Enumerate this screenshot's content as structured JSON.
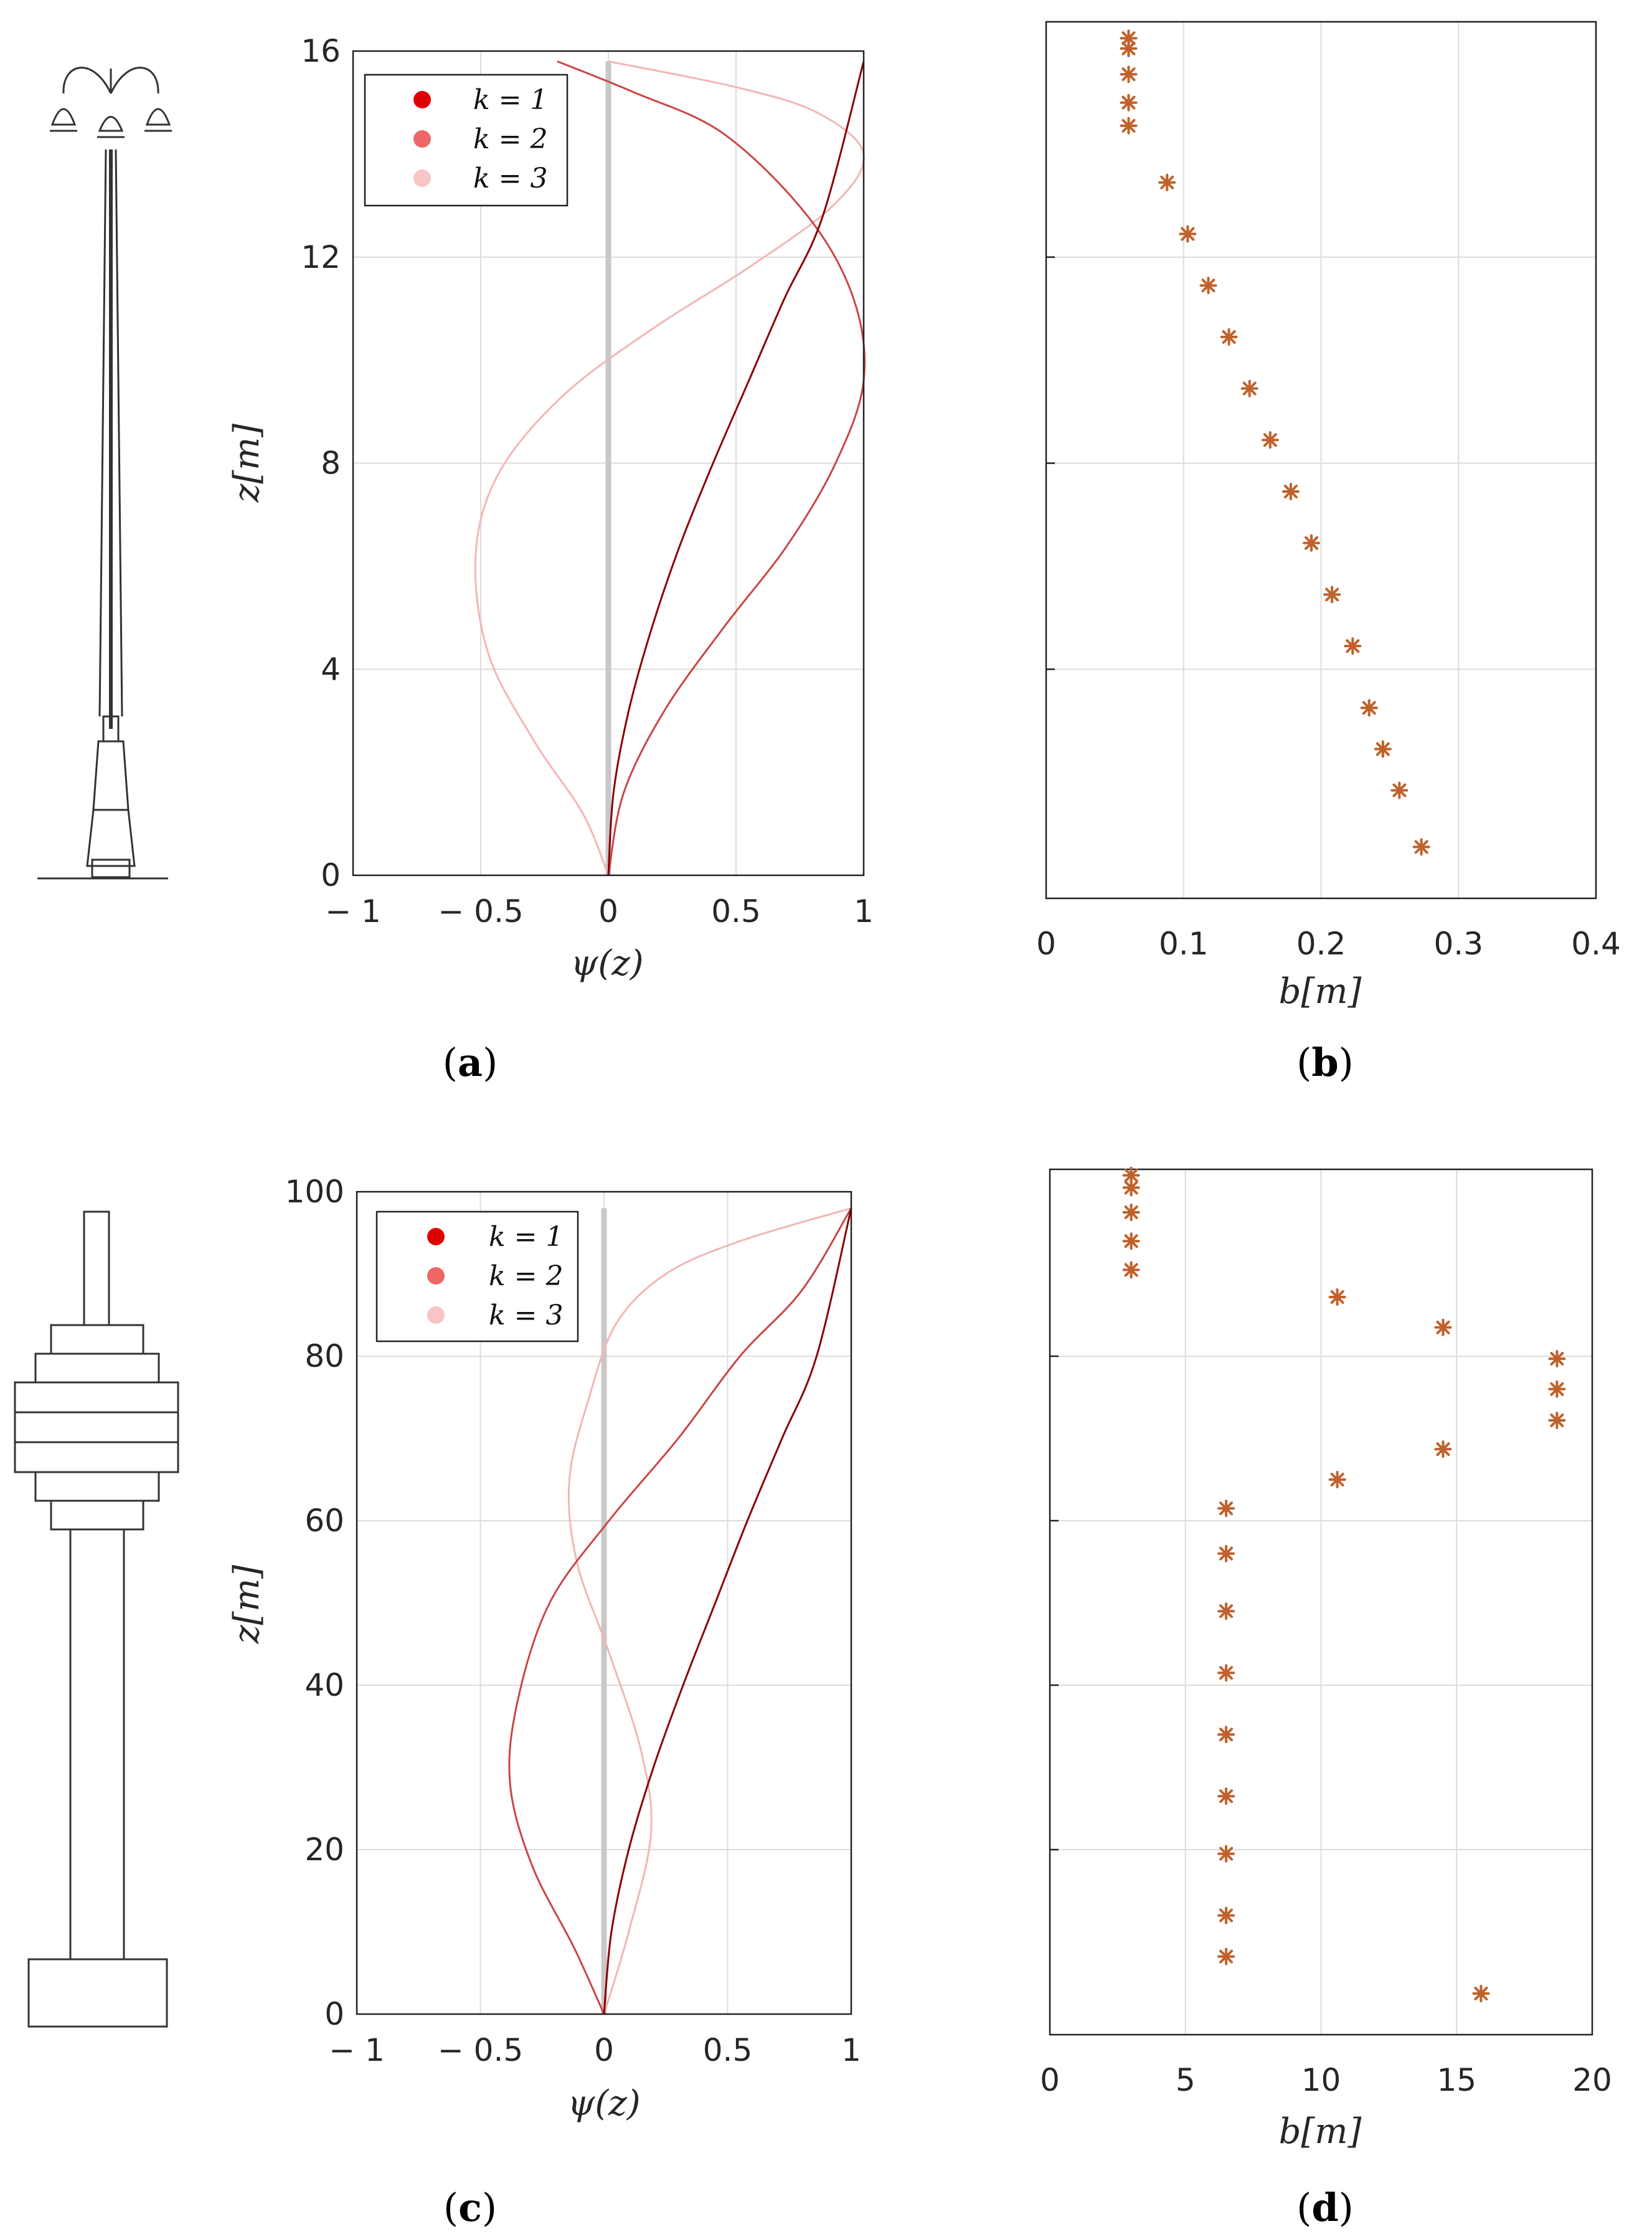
{
  "chart_data": [
    {
      "panel": "a",
      "type": "line",
      "xlabel": "ψ(z)",
      "ylabel": "z[m]",
      "xlim": [
        -1,
        1
      ],
      "ylim": [
        0,
        16
      ],
      "xticks": [
        "− 1",
        "− 0.5",
        "0",
        "0.5",
        "1"
      ],
      "yticks": [
        "0",
        "4",
        "8",
        "12",
        "16"
      ],
      "grid": true,
      "legend": "top-left",
      "series": [
        {
          "name": "k = 1",
          "color": "#8b0000",
          "x": [
            0,
            0.02,
            0.08,
            0.17,
            0.28,
            0.41,
            0.55,
            0.69,
            0.84,
            1.0
          ],
          "y": [
            0,
            1.6,
            3.2,
            4.8,
            6.4,
            8.0,
            9.6,
            11.2,
            12.8,
            15.8
          ]
        },
        {
          "name": "k = 2",
          "color": "#cc4444",
          "x": [
            0,
            0.06,
            0.22,
            0.45,
            0.7,
            0.89,
            1.0,
            0.96,
            0.78,
            0.45,
            0.1,
            -0.2
          ],
          "y": [
            0,
            1.6,
            3.2,
            4.8,
            6.4,
            8.0,
            9.6,
            11.2,
            12.8,
            14.4,
            15.2,
            15.8
          ]
        },
        {
          "name": "k = 3",
          "color": "#f2b6b6",
          "x": [
            0,
            -0.1,
            -0.29,
            -0.47,
            -0.52,
            -0.43,
            -0.18,
            0.17,
            0.55,
            0.88,
            1.0,
            0.82,
            0.5,
            0.0
          ],
          "y": [
            0,
            1.2,
            2.6,
            4.3,
            6.2,
            7.8,
            9.3,
            10.6,
            11.8,
            13.0,
            14.0,
            14.8,
            15.3,
            15.8
          ]
        }
      ],
      "reference_line": {
        "x": 0,
        "y": [
          0,
          15.8
        ],
        "color": "#c8c8c8"
      }
    },
    {
      "panel": "b",
      "type": "scatter",
      "xlabel": "b[m]",
      "xlim": [
        0,
        0.4
      ],
      "ylim": [
        0,
        16
      ],
      "xticks": [
        "0",
        "0.1",
        "0.2",
        "0.3",
        "0.4"
      ],
      "grid": true,
      "marker_color": "#c0612b",
      "x": [
        0.273,
        0.257,
        0.245,
        0.235,
        0.223,
        0.208,
        0.193,
        0.178,
        0.163,
        0.148,
        0.133,
        0.118,
        0.103,
        0.088,
        0.06,
        0.06,
        0.06,
        0.06,
        0.06
      ],
      "y": [
        0.55,
        1.65,
        2.45,
        3.25,
        4.45,
        5.45,
        6.45,
        7.45,
        8.45,
        9.45,
        10.45,
        11.45,
        12.45,
        13.45,
        14.55,
        15.0,
        15.55,
        16.05,
        16.25
      ]
    },
    {
      "panel": "c",
      "type": "line",
      "xlabel": "ψ(z)",
      "ylabel": "z[m]",
      "xlim": [
        -1,
        1
      ],
      "ylim": [
        0,
        100
      ],
      "xticks": [
        "− 1",
        "− 0.5",
        "0",
        "0.5",
        "1"
      ],
      "yticks": [
        "0",
        "20",
        "40",
        "60",
        "80",
        "100"
      ],
      "grid": true,
      "legend": "top-left",
      "series": [
        {
          "name": "k = 1",
          "color": "#8b0000",
          "x": [
            0,
            0.03,
            0.1,
            0.2,
            0.32,
            0.45,
            0.58,
            0.72,
            0.86,
            1.0
          ],
          "y": [
            0,
            10,
            20,
            30,
            40,
            50,
            60,
            70,
            80,
            98
          ]
        },
        {
          "name": "k = 2",
          "color": "#cc4444",
          "x": [
            0,
            -0.12,
            -0.29,
            -0.38,
            -0.35,
            -0.22,
            0.02,
            0.3,
            0.55,
            0.8,
            1.0
          ],
          "y": [
            0,
            8,
            18,
            28,
            38,
            50,
            60,
            70,
            80,
            88,
            98
          ]
        },
        {
          "name": "k = 3",
          "color": "#f2b6b6",
          "x": [
            0,
            0.1,
            0.19,
            0.15,
            0.02,
            -0.11,
            -0.14,
            -0.06,
            0.05,
            0.25,
            0.55,
            1.0
          ],
          "y": [
            0,
            10,
            22,
            32,
            44,
            55,
            65,
            75,
            84,
            90,
            94,
            98
          ]
        }
      ],
      "reference_line": {
        "x": 0,
        "y": [
          0,
          98
        ],
        "color": "#c8c8c8"
      }
    },
    {
      "panel": "d",
      "type": "scatter",
      "xlabel": "b[m]",
      "xlim": [
        0,
        20
      ],
      "ylim": [
        0,
        100
      ],
      "xticks": [
        "0",
        "5",
        "10",
        "15",
        "20"
      ],
      "grid": true,
      "marker_color": "#c0612b",
      "x": [
        15.9,
        6.5,
        6.5,
        6.5,
        6.5,
        6.5,
        6.5,
        6.5,
        6.5,
        6.5,
        10.6,
        14.5,
        18.7,
        18.7,
        18.7,
        14.5,
        10.6,
        3.0,
        3.0,
        3.0,
        3.0,
        3.0
      ],
      "y": [
        2.5,
        7,
        12,
        19.5,
        26.5,
        34,
        41.5,
        49,
        56,
        61.5,
        65,
        68.7,
        72.2,
        76,
        79.7,
        83.5,
        87.2,
        90.5,
        94,
        97.5,
        100.5,
        102
      ]
    }
  ],
  "panel_labels": {
    "a": {
      "open": "(",
      "letter": "a",
      "close": ")"
    },
    "b": {
      "open": "(",
      "letter": "b",
      "close": ")"
    },
    "c": {
      "open": "(",
      "letter": "c",
      "close": ")"
    },
    "d": {
      "open": "(",
      "letter": "d",
      "close": ")"
    }
  },
  "legend_labels": [
    "k = 1",
    "k = 2",
    "k = 3"
  ],
  "legend_colors": [
    "#e00000",
    "#ee6666",
    "#f8c4c4"
  ]
}
